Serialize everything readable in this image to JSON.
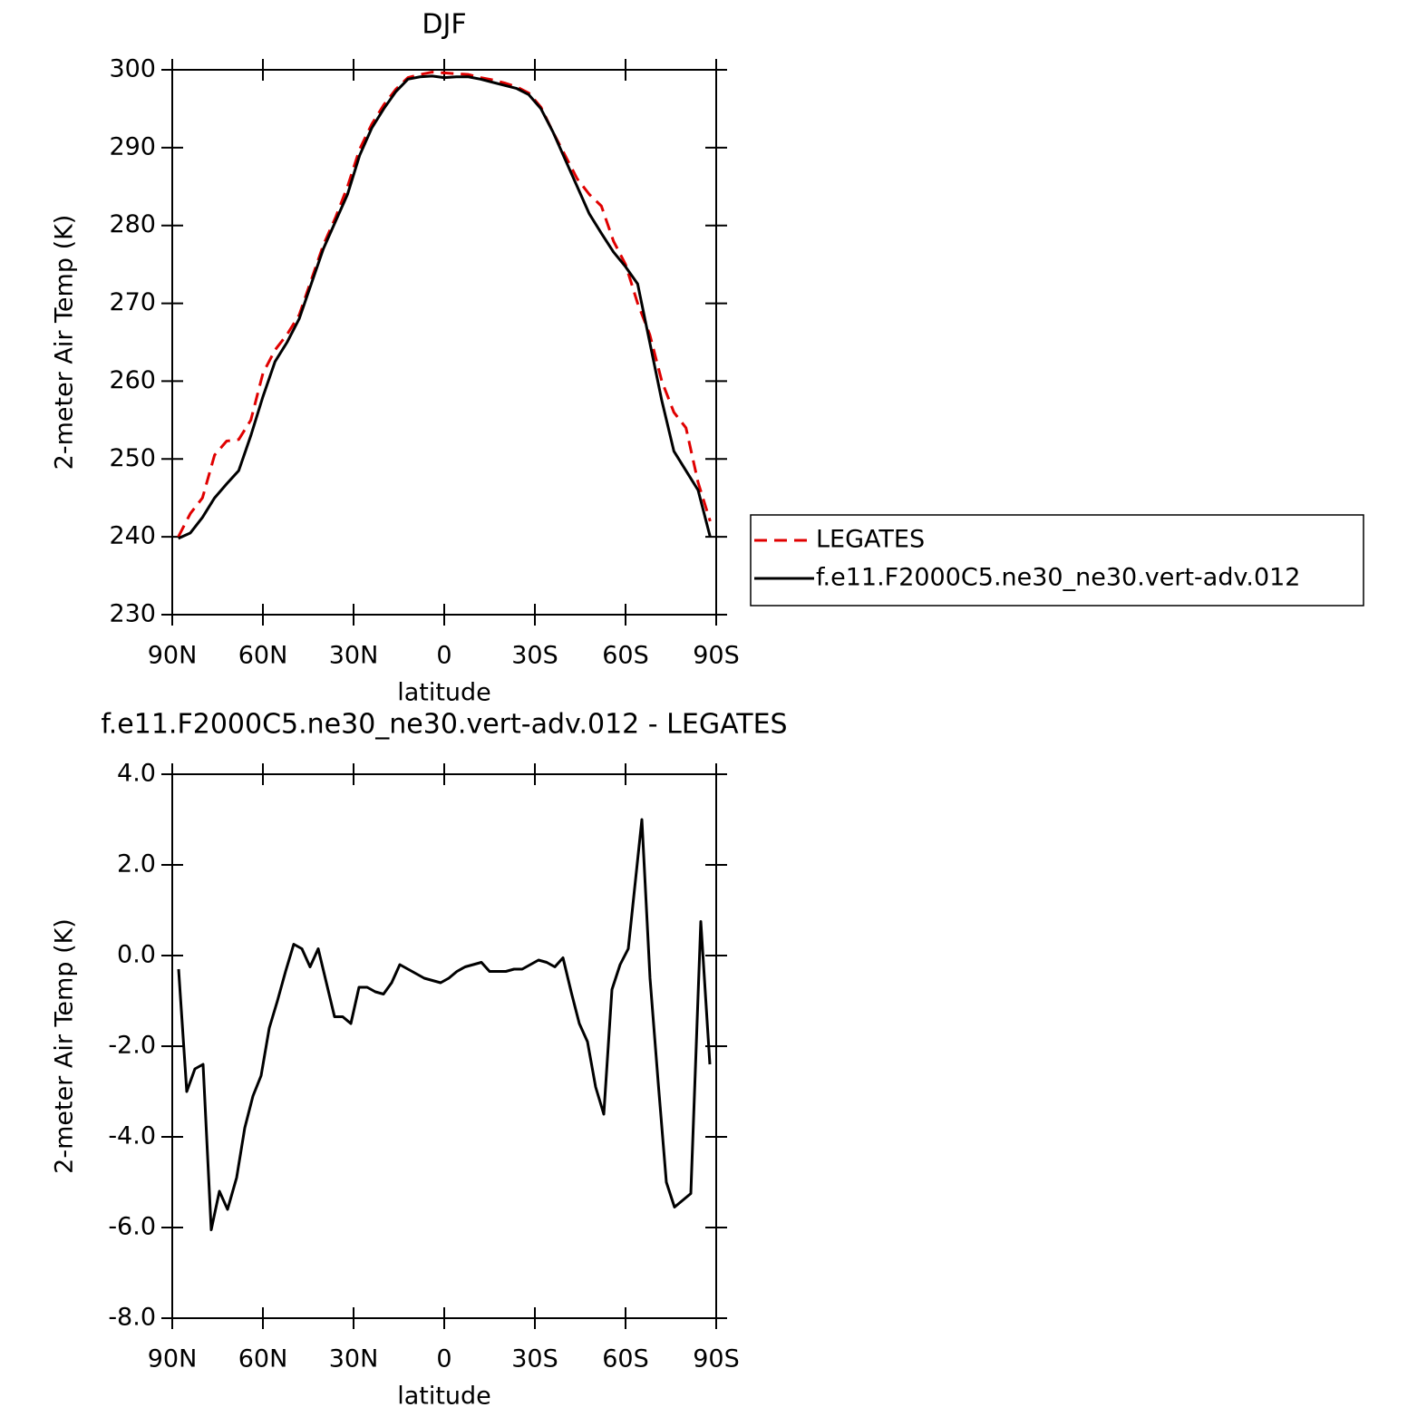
{
  "chart_data": [
    {
      "type": "line",
      "title": "DJF",
      "xlabel": "latitude",
      "ylabel": "2-meter Air Temp (K)",
      "xlim": [
        90,
        -90
      ],
      "xticks": [
        {
          "value": 90,
          "label": "90N"
        },
        {
          "value": 60,
          "label": "60N"
        },
        {
          "value": 30,
          "label": "30N"
        },
        0,
        {
          "value": -30,
          "label": "30S"
        },
        {
          "value": -60,
          "label": "60S"
        },
        {
          "value": -90,
          "label": "90S"
        }
      ],
      "ylim": [
        230,
        300
      ],
      "yticks": [
        230,
        240,
        250,
        260,
        270,
        280,
        290,
        300
      ],
      "legend": "outside-right",
      "x": [
        88,
        84,
        80,
        76,
        72,
        68,
        64,
        60,
        56,
        52,
        48,
        44,
        40,
        36,
        32,
        28,
        24,
        20,
        16,
        12,
        8,
        4,
        0,
        -4,
        -8,
        -12,
        -16,
        -20,
        -24,
        -28,
        -32,
        -36,
        -40,
        -44,
        -48,
        -52,
        -56,
        -60,
        -64,
        -68,
        -72,
        -76,
        -80,
        -84,
        -88
      ],
      "series": [
        {
          "name": "LEGATES",
          "color": "#e00000",
          "dashed": true,
          "values": [
            240,
            243,
            245,
            250.5,
            252.3,
            252.5,
            255,
            261,
            264,
            266,
            268.5,
            273,
            277.5,
            281,
            285,
            289.8,
            293,
            295.5,
            297.5,
            299,
            299.4,
            299.7,
            299.6,
            299.5,
            299.4,
            299,
            298.7,
            298.3,
            297.8,
            297,
            295.2,
            292,
            289,
            286,
            284,
            282.5,
            278,
            275,
            270,
            266,
            260,
            256,
            254,
            247,
            242
          ]
        },
        {
          "name": "f.e11.F2000C5.ne30_ne30.vert-adv.012",
          "color": "#000000",
          "dashed": false,
          "values": [
            239.8,
            240.5,
            242.5,
            245,
            246.8,
            248.5,
            253,
            258,
            262.5,
            265,
            268,
            272.5,
            277,
            280.5,
            284,
            289,
            292.5,
            295,
            297.2,
            298.8,
            299.1,
            299.2,
            299,
            299.1,
            299.1,
            298.8,
            298.4,
            298,
            297.6,
            296.8,
            295,
            292,
            288.5,
            285,
            281.5,
            279,
            276.6,
            274.7,
            272.5,
            265,
            257.5,
            251,
            248.5,
            246,
            240
          ]
        }
      ]
    },
    {
      "type": "line",
      "title": "f.e11.F2000C5.ne30_ne30.vert-adv.012 - LEGATES",
      "xlabel": "latitude",
      "ylabel": "2-meter Air Temp (K)",
      "xlim": [
        90,
        -90
      ],
      "xticks": [
        {
          "value": 90,
          "label": "90N"
        },
        {
          "value": 60,
          "label": "60N"
        },
        {
          "value": 30,
          "label": "30N"
        },
        0,
        {
          "value": -30,
          "label": "30S"
        },
        {
          "value": -60,
          "label": "60S"
        },
        {
          "value": -90,
          "label": "90S"
        }
      ],
      "ylim": [
        -8,
        4
      ],
      "yticks": [
        {
          "value": -8,
          "label": "-8.0"
        },
        {
          "value": -6,
          "label": "-6.0"
        },
        {
          "value": -4,
          "label": "-4.0"
        },
        {
          "value": -2,
          "label": "-2.0"
        },
        {
          "value": 0,
          "label": "0.0"
        },
        {
          "value": 2,
          "label": "2.0"
        },
        {
          "value": 4,
          "label": "4.0"
        }
      ],
      "color": "#000000",
      "x": [
        87.9,
        85.2,
        82.5,
        79.8,
        77.1,
        74.4,
        71.7,
        68.7,
        66,
        63.3,
        60.6,
        57.9,
        55.2,
        52.5,
        49.8,
        47.1,
        44.4,
        41.7,
        39,
        36.3,
        33.6,
        30.9,
        28.2,
        25.5,
        22.8,
        20.1,
        17.4,
        14.7,
        12,
        9.3,
        6.6,
        3.9,
        1.2,
        -1.5,
        -4.2,
        -6.9,
        -9.6,
        -12.3,
        -15,
        -17.7,
        -20.4,
        -23.1,
        -25.8,
        -28.5,
        -31.2,
        -33.9,
        -36.6,
        -39.3,
        -42,
        -44.7,
        -47.4,
        -50.1,
        -52.8,
        -55.5,
        -58.2,
        -60.9,
        -65.4,
        -68.1,
        -70.8,
        -73.5,
        -76.2,
        -78.9,
        -81.6,
        -84.9,
        -87.9
      ],
      "values": [
        -0.3,
        -3.0,
        -2.5,
        -2.4,
        -6.05,
        -5.2,
        -5.6,
        -4.9,
        -3.8,
        -3.1,
        -2.65,
        -1.6,
        -1.0,
        -0.35,
        0.25,
        0.15,
        -0.25,
        0.15,
        -0.6,
        -1.35,
        -1.35,
        -1.5,
        -0.7,
        -0.7,
        -0.8,
        -0.85,
        -0.6,
        -0.2,
        -0.3,
        -0.4,
        -0.5,
        -0.55,
        -0.6,
        -0.5,
        -0.35,
        -0.25,
        -0.2,
        -0.15,
        -0.35,
        -0.35,
        -0.35,
        -0.3,
        -0.3,
        -0.2,
        -0.1,
        -0.15,
        -0.25,
        -0.05,
        -0.8,
        -1.5,
        -1.9,
        -2.9,
        -3.5,
        -0.75,
        -0.2,
        0.15,
        3.0,
        -0.5,
        -2.8,
        -5.0,
        -5.55,
        -5.4,
        -5.25,
        0.75,
        -2.4
      ]
    }
  ]
}
